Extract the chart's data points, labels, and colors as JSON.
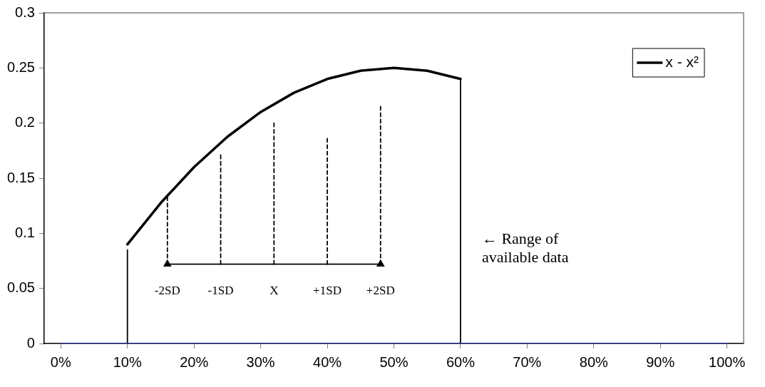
{
  "chart_data": {
    "type": "line",
    "xlim": [
      -2.5,
      102.5
    ],
    "xticks": [
      {
        "value": 0,
        "label": "0%"
      },
      {
        "value": 10,
        "label": "10%"
      },
      {
        "value": 20,
        "label": "20%"
      },
      {
        "value": 30,
        "label": "30%"
      },
      {
        "value": 40,
        "label": "40%"
      },
      {
        "value": 50,
        "label": "50%"
      },
      {
        "value": 60,
        "label": "60%"
      },
      {
        "value": 70,
        "label": "70%"
      },
      {
        "value": 80,
        "label": "80%"
      },
      {
        "value": 90,
        "label": "90%"
      },
      {
        "value": 100,
        "label": "100%"
      }
    ],
    "ylim": [
      0,
      0.3
    ],
    "yticks": [
      0,
      0.05,
      0.1,
      0.15,
      0.2,
      0.25,
      0.3
    ],
    "grid": false,
    "legend": "top right",
    "marker": "none",
    "series": [
      {
        "name": "x - x²",
        "color": "#000000",
        "x": [
          10,
          15,
          20,
          25,
          30,
          35,
          40,
          45,
          50,
          55,
          60
        ],
        "values": [
          0.09,
          0.1275,
          0.16,
          0.1875,
          0.21,
          0.2275,
          0.24,
          0.2475,
          0.25,
          0.2475,
          0.24
        ]
      },
      {
        "color": "#000080",
        "x": [
          0,
          5,
          10,
          15,
          20,
          25,
          30,
          35,
          40,
          45,
          50,
          55,
          60,
          65,
          70,
          75,
          80,
          85,
          90,
          95,
          100
        ],
        "values": [
          0,
          0,
          0,
          0,
          0,
          0,
          0,
          0,
          0,
          0,
          0,
          0,
          0,
          0,
          0,
          0,
          0,
          0,
          0,
          0,
          0
        ]
      },
      {
        "color": "#000000",
        "x": [
          10,
          10
        ],
        "values": [
          0,
          0.085
        ]
      },
      {
        "color": "#000000",
        "x": [
          60,
          60
        ],
        "values": [
          0,
          0.24
        ]
      },
      {
        "color": "#000000",
        "x": [
          16,
          48
        ],
        "values": [
          0.072,
          0.072
        ],
        "marker": "triangle"
      },
      {
        "color": "#000000",
        "x": [
          16,
          16
        ],
        "values": [
          0.072,
          0.133
        ],
        "line_style": "dashed"
      },
      {
        "color": "#000000",
        "x": [
          24,
          24
        ],
        "values": [
          0.072,
          0.171
        ],
        "line_style": "dashed"
      },
      {
        "color": "#000000",
        "x": [
          32,
          32
        ],
        "values": [
          0.072,
          0.2
        ],
        "line_style": "dashed"
      },
      {
        "color": "#000000",
        "x": [
          40,
          40
        ],
        "values": [
          0.072,
          0.186
        ],
        "line_style": "dashed"
      },
      {
        "color": "#000000",
        "x": [
          48,
          48
        ],
        "values": [
          0.072,
          0.215
        ],
        "line_style": "dashed"
      }
    ],
    "annotations": [
      {
        "text": "-2SD",
        "x": 16,
        "y": 0.072
      },
      {
        "text": "-1SD",
        "x": 24,
        "y": 0.072
      },
      {
        "text": "X",
        "x": 32,
        "y": 0.072
      },
      {
        "text": "+1SD",
        "x": 40,
        "y": 0.072
      },
      {
        "text": "+2SD",
        "x": 48,
        "y": 0.072
      },
      {
        "text": "← Range of available data",
        "x": 60,
        "y": 0.094
      }
    ]
  }
}
